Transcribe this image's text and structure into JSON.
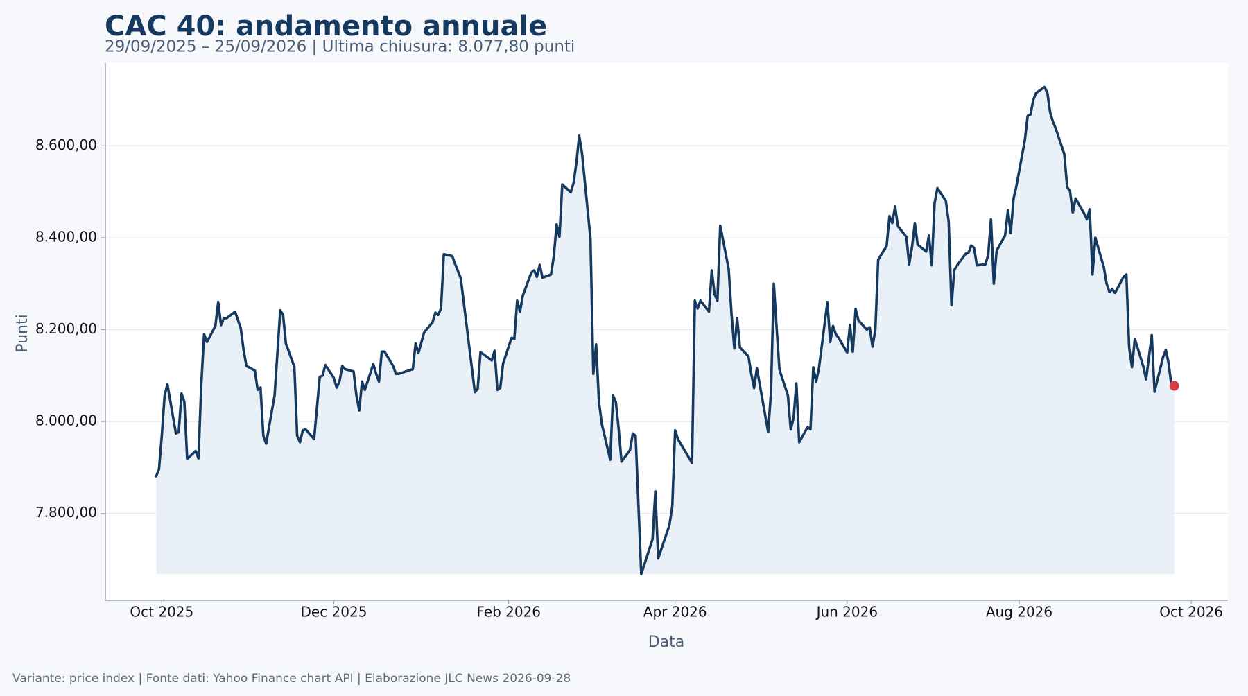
{
  "chart_data": {
    "type": "line",
    "title": "CAC 40: andamento annuale",
    "subtitle": "29/09/2025 – 25/09/2026 | Ultima chiusura: 8.077,80 punti",
    "x_label": "Data",
    "y_label": "Punti",
    "footer": "Variante: price index | Fonte dati: Yahoo Finance chart API | Elaborazione JLC News 2026-09-28",
    "color": "#163a5f",
    "fill_color": "#e6edf6",
    "last_point_color": "#d64045",
    "grid": true,
    "xlim": [
      "2025-09-11",
      "2026-10-14"
    ],
    "xticks": [
      {
        "value": "2025-10-01",
        "label": "Oct 2025"
      },
      {
        "value": "2025-12-01",
        "label": "Dec 2025"
      },
      {
        "value": "2026-02-01",
        "label": "Feb 2026"
      },
      {
        "value": "2026-04-01",
        "label": "Apr 2026"
      },
      {
        "value": "2026-06-01",
        "label": "Jun 2026"
      },
      {
        "value": "2026-08-01",
        "label": "Aug 2026"
      },
      {
        "value": "2026-10-01",
        "label": "Oct 2026"
      }
    ],
    "ylim": [
      7611,
      8780
    ],
    "yticks": [
      {
        "value": 7800,
        "label": "7.800,00"
      },
      {
        "value": 8000,
        "label": "8.000,00"
      },
      {
        "value": 8200,
        "label": "8.200,00"
      },
      {
        "value": 8400,
        "label": "8.400,00"
      },
      {
        "value": 8600,
        "label": "8.600,00"
      }
    ],
    "x": [
      "2025-09-29",
      "2025-09-30",
      "2025-10-01",
      "2025-10-02",
      "2025-10-03",
      "2025-10-06",
      "2025-10-07",
      "2025-10-08",
      "2025-10-09",
      "2025-10-10",
      "2025-10-13",
      "2025-10-14",
      "2025-10-15",
      "2025-10-16",
      "2025-10-17",
      "2025-10-20",
      "2025-10-21",
      "2025-10-22",
      "2025-10-23",
      "2025-10-24",
      "2025-10-27",
      "2025-10-29",
      "2025-10-30",
      "2025-10-31",
      "2025-11-03",
      "2025-11-04",
      "2025-11-05",
      "2025-11-06",
      "2025-11-07",
      "2025-11-10",
      "2025-11-12",
      "2025-11-13",
      "2025-11-14",
      "2025-11-17",
      "2025-11-18",
      "2025-11-19",
      "2025-11-20",
      "2025-11-21",
      "2025-11-24",
      "2025-11-26",
      "2025-11-27",
      "2025-11-28",
      "2025-12-01",
      "2025-12-02",
      "2025-12-03",
      "2025-12-04",
      "2025-12-05",
      "2025-12-08",
      "2025-12-09",
      "2025-12-10",
      "2025-12-11",
      "2025-12-12",
      "2025-12-15",
      "2025-12-16",
      "2025-12-17",
      "2025-12-18",
      "2025-12-19",
      "2025-12-22",
      "2025-12-23",
      "2025-12-24",
      "2025-12-29",
      "2025-12-30",
      "2025-12-31",
      "2026-01-02",
      "2026-01-05",
      "2026-01-06",
      "2026-01-07",
      "2026-01-08",
      "2026-01-09",
      "2026-01-12",
      "2026-01-13",
      "2026-01-15",
      "2026-01-20",
      "2026-01-21",
      "2026-01-22",
      "2026-01-26",
      "2026-01-27",
      "2026-01-28",
      "2026-01-29",
      "2026-01-30",
      "2026-02-02",
      "2026-02-03",
      "2026-02-04",
      "2026-02-05",
      "2026-02-06",
      "2026-02-09",
      "2026-02-10",
      "2026-02-11",
      "2026-02-12",
      "2026-02-13",
      "2026-02-16",
      "2026-02-17",
      "2026-02-18",
      "2026-02-19",
      "2026-02-20",
      "2026-02-23",
      "2026-02-24",
      "2026-02-25",
      "2026-02-26",
      "2026-02-27",
      "2026-03-02",
      "2026-03-03",
      "2026-03-04",
      "2026-03-05",
      "2026-03-06",
      "2026-03-09",
      "2026-03-10",
      "2026-03-11",
      "2026-03-12",
      "2026-03-13",
      "2026-03-16",
      "2026-03-17",
      "2026-03-18",
      "2026-03-20",
      "2026-03-24",
      "2026-03-25",
      "2026-03-26",
      "2026-03-30",
      "2026-03-31",
      "2026-04-01",
      "2026-04-02",
      "2026-04-07",
      "2026-04-08",
      "2026-04-09",
      "2026-04-10",
      "2026-04-13",
      "2026-04-14",
      "2026-04-15",
      "2026-04-16",
      "2026-04-17",
      "2026-04-20",
      "2026-04-21",
      "2026-04-22",
      "2026-04-23",
      "2026-04-24",
      "2026-04-27",
      "2026-04-28",
      "2026-04-29",
      "2026-04-30",
      "2026-05-04",
      "2026-05-05",
      "2026-05-06",
      "2026-05-07",
      "2026-05-08",
      "2026-05-11",
      "2026-05-12",
      "2026-05-13",
      "2026-05-14",
      "2026-05-15",
      "2026-05-18",
      "2026-05-19",
      "2026-05-20",
      "2026-05-21",
      "2026-05-22",
      "2026-05-25",
      "2026-05-26",
      "2026-05-27",
      "2026-05-28",
      "2026-05-29",
      "2026-06-01",
      "2026-06-02",
      "2026-06-03",
      "2026-06-04",
      "2026-06-05",
      "2026-06-08",
      "2026-06-09",
      "2026-06-10",
      "2026-06-11",
      "2026-06-12",
      "2026-06-15",
      "2026-06-16",
      "2026-06-17",
      "2026-06-18",
      "2026-06-19",
      "2026-06-22",
      "2026-06-23",
      "2026-06-24",
      "2026-06-25",
      "2026-06-26",
      "2026-06-29",
      "2026-06-30",
      "2026-07-01",
      "2026-07-02",
      "2026-07-03",
      "2026-07-06",
      "2026-07-07",
      "2026-07-08",
      "2026-07-09",
      "2026-07-10",
      "2026-07-13",
      "2026-07-14",
      "2026-07-15",
      "2026-07-16",
      "2026-07-17",
      "2026-07-20",
      "2026-07-21",
      "2026-07-22",
      "2026-07-23",
      "2026-07-24",
      "2026-07-27",
      "2026-07-28",
      "2026-07-29",
      "2026-07-30",
      "2026-07-31",
      "2026-08-03",
      "2026-08-04",
      "2026-08-05",
      "2026-08-06",
      "2026-08-07",
      "2026-08-10",
      "2026-08-11",
      "2026-08-12",
      "2026-08-13",
      "2026-08-14",
      "2026-08-17",
      "2026-08-18",
      "2026-08-19",
      "2026-08-20",
      "2026-08-21",
      "2026-08-24",
      "2026-08-25",
      "2026-08-26",
      "2026-08-27",
      "2026-08-28",
      "2026-08-31",
      "2026-09-01",
      "2026-09-02",
      "2026-09-03",
      "2026-09-04",
      "2026-09-07",
      "2026-09-08",
      "2026-09-09",
      "2026-09-10",
      "2026-09-11",
      "2026-09-14",
      "2026-09-15",
      "2026-09-16",
      "2026-09-17",
      "2026-09-18",
      "2026-09-21",
      "2026-09-22",
      "2026-09-23",
      "2026-09-24",
      "2026-09-25"
    ],
    "values": [
      7881,
      7896,
      7969,
      8057,
      8081,
      7974,
      7977,
      8061,
      8043,
      7919,
      7936,
      7920,
      8080,
      8190,
      8173,
      8208,
      8260,
      8210,
      8225,
      8225,
      8239,
      8203,
      8156,
      8121,
      8111,
      8069,
      8074,
      7969,
      7952,
      8057,
      8242,
      8232,
      8170,
      8119,
      7969,
      7955,
      7981,
      7983,
      7962,
      8097,
      8100,
      8123,
      8095,
      8074,
      8087,
      8121,
      8114,
      8109,
      8057,
      8024,
      8087,
      8069,
      8125,
      8104,
      8087,
      8152,
      8152,
      8121,
      8104,
      8104,
      8114,
      8170,
      8149,
      8194,
      8216,
      8237,
      8232,
      8246,
      8364,
      8360,
      8343,
      8312,
      8064,
      8071,
      8151,
      8133,
      8154,
      8069,
      8073,
      8126,
      8182,
      8180,
      8263,
      8239,
      8274,
      8324,
      8329,
      8315,
      8341,
      8313,
      8320,
      8360,
      8429,
      8402,
      8516,
      8499,
      8519,
      8563,
      8622,
      8584,
      8397,
      8104,
      8168,
      8043,
      7995,
      7917,
      8057,
      8042,
      7983,
      7913,
      7938,
      7974,
      7969,
      7668,
      7744,
      7848,
      7702,
      7775,
      7816,
      7981,
      7962,
      7910,
      8263,
      8246,
      8263,
      8239,
      8329,
      8277,
      8263,
      8426,
      8332,
      8234,
      8159,
      8225,
      8161,
      8142,
      8104,
      8073,
      8116,
      7977,
      8064,
      8300,
      8204,
      8113,
      8057,
      7983,
      8007,
      8083,
      7955,
      7988,
      7983,
      8118,
      8087,
      8116,
      8260,
      8173,
      8208,
      8190,
      8182,
      8150,
      8210,
      8152,
      8245,
      8220,
      8200,
      8205,
      8163,
      8200,
      8352,
      8382,
      8447,
      8432,
      8468,
      8425,
      8402,
      8342,
      8380,
      8432,
      8385,
      8370,
      8405,
      8340,
      8475,
      8508,
      8480,
      8435,
      8253,
      8330,
      8340,
      8365,
      8367,
      8383,
      8378,
      8340,
      8342,
      8362,
      8440,
      8300,
      8372,
      8405,
      8460,
      8410,
      8485,
      8512,
      8612,
      8665,
      8668,
      8700,
      8715,
      8728,
      8715,
      8672,
      8652,
      8637,
      8582,
      8510,
      8502,
      8455,
      8485,
      8453,
      8440,
      8462,
      8320,
      8400,
      8336,
      8300,
      8282,
      8288,
      8280,
      8315,
      8320,
      8160,
      8118,
      8180,
      8120,
      8092,
      8140,
      8188,
      8065,
      8140,
      8156,
      8126,
      8078,
      8077.8
    ]
  }
}
